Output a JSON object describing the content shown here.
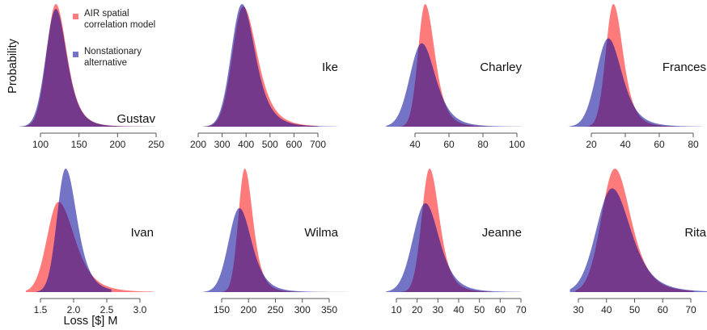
{
  "chart_data": {
    "type": "area",
    "ylabel": "Probability",
    "xlabel": "Loss [$] M",
    "legend": {
      "placement": "top-left",
      "entries": [
        {
          "lines": [
            "AIR spatial",
            "correlation model"
          ],
          "color": "#ff7a7a"
        },
        {
          "lines": [
            "Nonstationary",
            "alternative"
          ],
          "color": "#7474c6"
        }
      ]
    },
    "series_names": [
      "AIR spatial correlation model",
      "Nonstationary alternative"
    ],
    "panels": [
      {
        "name": "Gustav",
        "xlim": [
          72,
          250
        ],
        "ticks": [
          100,
          150,
          200,
          250
        ],
        "tick_labels": [
          "100",
          "150",
          "200",
          "250"
        ],
        "series": [
          {
            "mode": 120,
            "peak": 1.0,
            "left_sd": 12,
            "right_sd": 15,
            "range": [
              74,
              248
            ]
          },
          {
            "mode": 120,
            "peak": 0.96,
            "left_sd": 13,
            "right_sd": 15,
            "range": [
              72,
              248
            ]
          }
        ]
      },
      {
        "name": "Ike",
        "xlim": [
          215,
          785
        ],
        "ticks": [
          200,
          300,
          400,
          500,
          600,
          700
        ],
        "tick_labels": [
          "200",
          "300",
          "400",
          "500",
          "600",
          "700"
        ],
        "series": [
          {
            "mode": 388,
            "peak": 0.98,
            "left_sd": 45,
            "right_sd": 62,
            "range": [
              222,
              700
            ]
          },
          {
            "mode": 383,
            "peak": 1.0,
            "left_sd": 45,
            "right_sd": 58,
            "range": [
              220,
              780
            ]
          }
        ]
      },
      {
        "name": "Charley",
        "xlim": [
          22,
          104
        ],
        "ticks": [
          40,
          60,
          80,
          100
        ],
        "tick_labels": [
          "40",
          "60",
          "80",
          "100"
        ],
        "series": [
          {
            "mode": 46,
            "peak": 1.0,
            "left_sd": 4.2,
            "right_sd": 6,
            "range": [
              30,
              82
            ]
          },
          {
            "mode": 44,
            "peak": 0.68,
            "left_sd": 7,
            "right_sd": 8.5,
            "range": [
              23,
              103
            ]
          }
        ]
      },
      {
        "name": "Frances",
        "xlim": [
          6,
          86
        ],
        "ticks": [
          20,
          40,
          60,
          80
        ],
        "tick_labels": [
          "20",
          "40",
          "60",
          "80"
        ],
        "series": [
          {
            "mode": 33,
            "peak": 1.0,
            "left_sd": 4.5,
            "right_sd": 6,
            "range": [
              15,
              69
            ]
          },
          {
            "mode": 30,
            "peak": 0.72,
            "left_sd": 7,
            "right_sd": 8.5,
            "range": [
              7,
              85
            ]
          }
        ]
      },
      {
        "name": "Ivan",
        "xlim": [
          1.28,
          3.2
        ],
        "ticks": [
          1.5,
          2.0,
          2.5,
          3.0
        ],
        "tick_labels": [
          "1.5",
          "2.0",
          "2.5",
          "3.0"
        ],
        "series": [
          {
            "mode": 1.77,
            "peak": 0.73,
            "left_sd": 0.17,
            "right_sd": 0.26,
            "range": [
              1.28,
              3.2
            ]
          },
          {
            "mode": 1.88,
            "peak": 1.0,
            "left_sd": 0.13,
            "right_sd": 0.18,
            "range": [
              1.44,
              2.57
            ]
          }
        ]
      },
      {
        "name": "Wilma",
        "xlim": [
          116,
          386
        ],
        "ticks": [
          150,
          200,
          250,
          300,
          350
        ],
        "tick_labels": [
          "150",
          "200",
          "250",
          "300",
          "350"
        ],
        "series": [
          {
            "mode": 193,
            "peak": 1.0,
            "left_sd": 12,
            "right_sd": 16,
            "range": [
              137,
              305
            ]
          },
          {
            "mode": 183,
            "peak": 0.68,
            "left_sd": 20,
            "right_sd": 24,
            "range": [
              116,
              385
            ]
          }
        ]
      },
      {
        "name": "Jeanne",
        "xlim": [
          5,
          70
        ],
        "ticks": [
          10,
          20,
          30,
          40,
          50,
          60,
          70
        ],
        "tick_labels": [
          "10",
          "20",
          "30",
          "40",
          "50",
          "60",
          "70"
        ],
        "series": [
          {
            "mode": 26,
            "peak": 1.0,
            "left_sd": 3.8,
            "right_sd": 5,
            "range": [
              12,
              56
            ]
          },
          {
            "mode": 24,
            "peak": 0.72,
            "left_sd": 6,
            "right_sd": 7,
            "range": [
              5,
              70
            ]
          }
        ]
      },
      {
        "name": "Rita",
        "xlim": [
          27,
          77
        ],
        "ticks": [
          30,
          40,
          50,
          60,
          70
        ],
        "tick_labels": [
          "30",
          "40",
          "50",
          "60",
          "70"
        ],
        "series": [
          {
            "mode": 43,
            "peak": 1.0,
            "left_sd": 4.8,
            "right_sd": 6,
            "range": [
              29,
              71
            ]
          },
          {
            "mode": 42,
            "peak": 0.84,
            "left_sd": 5.6,
            "right_sd": 7,
            "range": [
              27,
              77
            ]
          }
        ]
      }
    ]
  }
}
